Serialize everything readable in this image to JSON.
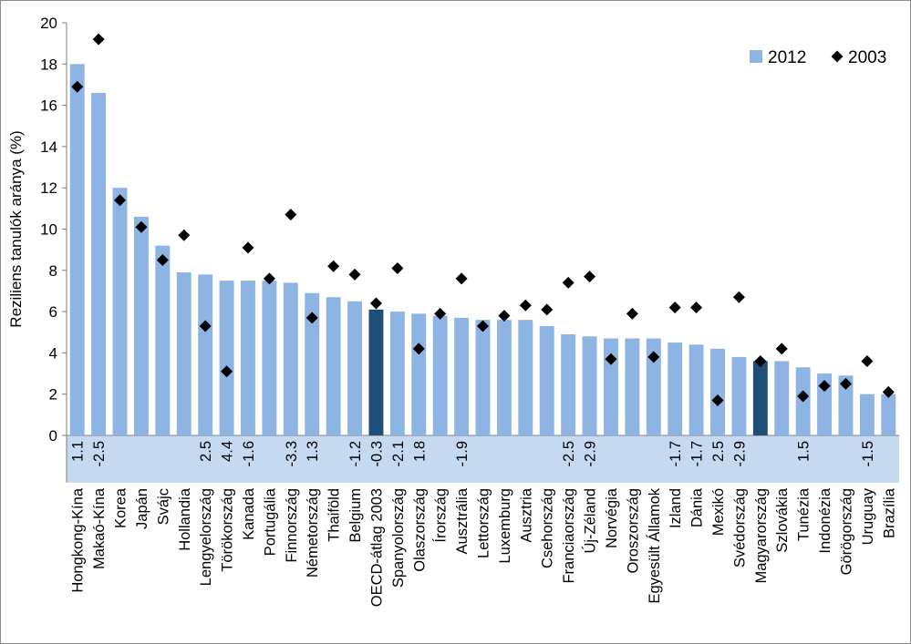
{
  "chart_data": {
    "type": "bar",
    "ylabel": "Reziliens tanulók  aránya (%)",
    "ylim": [
      0,
      20
    ],
    "yticks": [
      0,
      2,
      4,
      6,
      8,
      10,
      12,
      14,
      16,
      18,
      20
    ],
    "legend_position": "top-right",
    "colors": {
      "bar": "#8db4e2",
      "bar_highlight": "#1f4e79",
      "marker": "#000000",
      "band": "#c5d9f1"
    },
    "categories": [
      "Hongkong-Kína",
      "Makaó-Kína",
      "Korea",
      "Japán",
      "Svájc",
      "Hollandia",
      "Lengyelország",
      "Törökország",
      "Kanada",
      "Portugália",
      "Finnország",
      "Németország",
      "Thaiföld",
      "Belgium",
      "OECD-átlag 2003",
      "Spanyolország",
      "Olaszország",
      "Írország",
      "Ausztrália",
      "Lettország",
      "Luxemburg",
      "Ausztria",
      "Csehország",
      "Franciaország",
      "Új-Zéland",
      "Norvégia",
      "Oroszország",
      "Egyesült Államok",
      "Izland",
      "Dánia",
      "Mexikó",
      "Svédország",
      "Magyarország",
      "Szlovákia",
      "Tunézia",
      "Indonézia",
      "Görögország",
      "Uruguay",
      "Brazília"
    ],
    "highlight": [
      "OECD-átlag 2003",
      "Magyarország"
    ],
    "differences": [
      "1.1",
      "-2.5",
      "",
      "",
      "",
      "",
      "2.5",
      "4.4",
      "-1.6",
      "",
      "-3.3",
      "1.3",
      "",
      "-1.2",
      "-0.3",
      "-2.1",
      "1.8",
      "",
      "-1.9",
      "",
      "",
      "",
      "",
      "-2.5",
      "-2.9",
      "",
      "",
      "",
      "-1.7",
      "-1.7",
      "2.5",
      "-2.9",
      "",
      "",
      "1.5",
      "",
      "",
      "-1.5",
      ""
    ],
    "series": [
      {
        "name": "2012",
        "type": "bar",
        "values": [
          18.0,
          16.6,
          12.0,
          10.6,
          9.2,
          7.9,
          7.8,
          7.5,
          7.5,
          7.5,
          7.4,
          6.9,
          6.7,
          6.5,
          6.1,
          6.0,
          5.9,
          5.8,
          5.7,
          5.6,
          5.6,
          5.6,
          5.3,
          4.9,
          4.8,
          4.7,
          4.7,
          4.7,
          4.5,
          4.4,
          4.2,
          3.8,
          3.6,
          3.6,
          3.3,
          3.0,
          2.9,
          2.0,
          2.0
        ]
      },
      {
        "name": "2003",
        "type": "scatter",
        "values": [
          16.9,
          19.2,
          11.4,
          10.1,
          8.5,
          9.7,
          5.3,
          3.1,
          9.1,
          7.6,
          10.7,
          5.7,
          8.2,
          7.8,
          6.4,
          8.1,
          4.2,
          5.9,
          7.6,
          5.3,
          5.8,
          6.3,
          6.1,
          7.4,
          7.7,
          3.7,
          5.9,
          3.8,
          6.2,
          6.2,
          1.7,
          6.7,
          3.6,
          4.2,
          1.9,
          2.4,
          2.5,
          3.6,
          2.1
        ]
      }
    ]
  }
}
